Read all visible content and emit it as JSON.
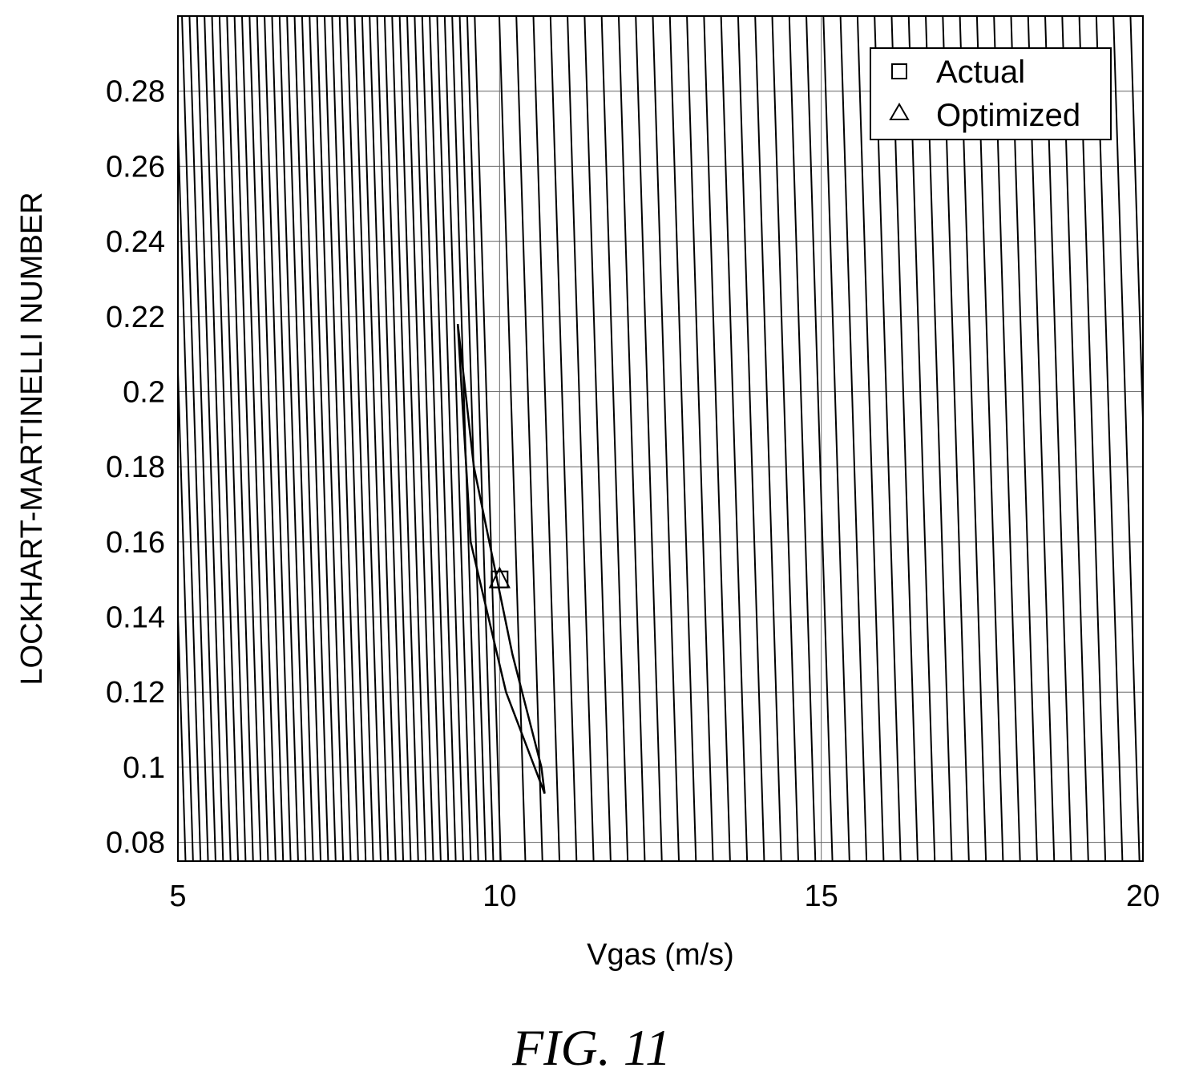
{
  "chart_data": {
    "type": "contour",
    "title": "",
    "xlabel": "Vgas (m/s)",
    "ylabel": "LOCKHART-MARTINELLI NUMBER",
    "xlim": [
      5,
      20
    ],
    "ylim": [
      0.075,
      0.3
    ],
    "x_ticks": [
      5,
      10,
      15,
      20
    ],
    "x_tick_labels": [
      "5",
      "10",
      "15",
      "20"
    ],
    "y_ticks": [
      0.08,
      0.1,
      0.12,
      0.14,
      0.16,
      0.18,
      0.2,
      0.22,
      0.24,
      0.26,
      0.28
    ],
    "y_tick_labels": [
      "0.08",
      "0.1",
      "0.12",
      "0.14",
      "0.16",
      "0.18",
      "0.2",
      "0.22",
      "0.24",
      "0.26",
      "0.28"
    ],
    "grid": true,
    "legend_position": "top-right",
    "optimum": {
      "x": 10,
      "y": 0.15
    },
    "series": [
      {
        "name": "Actual",
        "marker": "square",
        "x": 10,
        "y": 0.15
      },
      {
        "name": "Optimized",
        "marker": "triangle",
        "x": 10,
        "y": 0.15
      }
    ]
  },
  "caption": "FIG. 11",
  "colors": {
    "line": "#000000",
    "background": "#ffffff"
  }
}
